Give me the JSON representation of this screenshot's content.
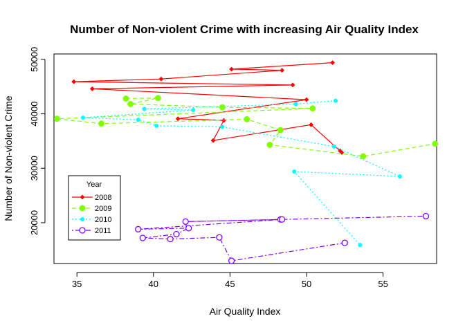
{
  "chart_data": {
    "type": "line",
    "title": "Number of Non-violent Crime with increasing Air Quality Index",
    "xlabel": "Air Quality Index",
    "ylabel": "Number of Non-violent Crime",
    "xlim": [
      33.5,
      58.5
    ],
    "ylim": [
      12500,
      51000
    ],
    "x_ticks": [
      35,
      40,
      45,
      50,
      55
    ],
    "x_tick_labels": [
      "35",
      "40",
      "45",
      "50",
      "55"
    ],
    "y_ticks": [
      20000,
      30000,
      40000,
      50000
    ],
    "y_tick_labels": [
      "20000",
      "30000",
      "40000",
      "50000"
    ],
    "grid": false,
    "legend": {
      "title": "Year",
      "position": "bottom-left"
    },
    "series": [
      {
        "name": "2008",
        "color": "#FF0000",
        "line_style": "solid",
        "marker": "diamond",
        "points": [
          [
            51.7,
            49400
          ],
          [
            45.1,
            48200
          ],
          [
            48.4,
            48000
          ],
          [
            40.5,
            46400
          ],
          [
            34.8,
            45900
          ],
          [
            49.1,
            45300
          ],
          [
            36.0,
            44600
          ],
          [
            50.0,
            42600
          ],
          [
            41.6,
            39100
          ],
          [
            44.6,
            38800
          ],
          [
            43.9,
            35100
          ],
          [
            50.3,
            38000
          ],
          [
            52.3,
            32900
          ],
          [
            52.2,
            33200
          ]
        ]
      },
      {
        "name": "2009",
        "color": "#80FF00",
        "line_style": "dashed",
        "marker": "circle",
        "points": [
          [
            38.2,
            42800
          ],
          [
            40.3,
            42900
          ],
          [
            38.5,
            41800
          ],
          [
            44.5,
            41200
          ],
          [
            50.4,
            41000
          ],
          [
            33.7,
            39100
          ],
          [
            36.6,
            38200
          ],
          [
            46.1,
            39000
          ],
          [
            48.3,
            37000
          ],
          [
            47.6,
            34300
          ],
          [
            53.7,
            32200
          ],
          [
            58.4,
            34500
          ]
        ]
      },
      {
        "name": "2010",
        "color": "#00FFFF",
        "line_style": "dotted",
        "marker": "dot",
        "points": [
          [
            51.9,
            42400
          ],
          [
            49.3,
            41800
          ],
          [
            39.4,
            40900
          ],
          [
            42.6,
            40700
          ],
          [
            35.4,
            39300
          ],
          [
            39.0,
            38900
          ],
          [
            40.2,
            37800
          ],
          [
            44.5,
            37600
          ],
          [
            51.8,
            34000
          ],
          [
            56.1,
            28500
          ],
          [
            49.2,
            29400
          ],
          [
            53.5,
            15900
          ]
        ]
      },
      {
        "name": "2011",
        "color": "#8000FF",
        "line_style": "dotdash",
        "marker": "open-circle",
        "points": [
          [
            57.8,
            21200
          ],
          [
            48.3,
            20600
          ],
          [
            42.1,
            20200
          ],
          [
            48.4,
            20600
          ],
          [
            39.0,
            18800
          ],
          [
            42.3,
            19000
          ],
          [
            41.5,
            17900
          ],
          [
            39.3,
            17200
          ],
          [
            41.1,
            17000
          ],
          [
            44.3,
            17300
          ],
          [
            45.1,
            13000
          ],
          [
            52.5,
            16300
          ]
        ]
      }
    ]
  }
}
